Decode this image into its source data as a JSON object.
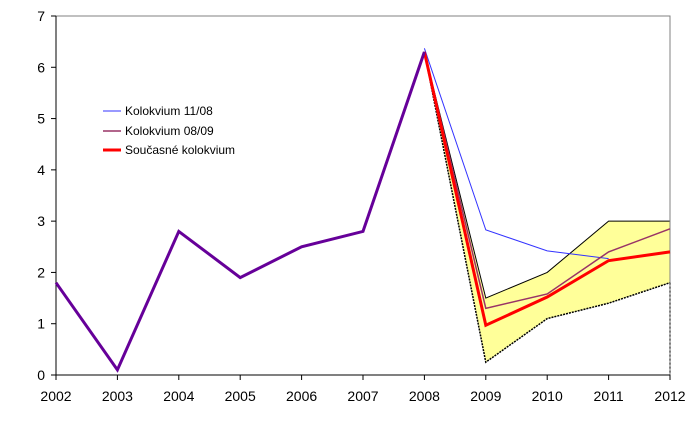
{
  "chart_data": {
    "type": "line",
    "title": "",
    "xlabel": "",
    "ylabel": "",
    "x": [
      "2002",
      "2003",
      "2004",
      "2005",
      "2006",
      "2007",
      "2008",
      "2009",
      "2010",
      "2011",
      "2012"
    ],
    "ylim": [
      0,
      7
    ],
    "yticks": [
      "0",
      "1",
      "2",
      "3",
      "4",
      "5",
      "6",
      "7"
    ],
    "grid": false,
    "legend_position": "left",
    "band": {
      "color": "#ffff99",
      "upper": [
        1.8,
        0.1,
        2.8,
        1.9,
        2.5,
        2.8,
        6.3,
        1.5,
        2.0,
        3.0,
        3.0
      ],
      "lower": [
        1.8,
        0.1,
        2.8,
        1.9,
        2.5,
        2.8,
        6.3,
        0.25,
        1.1,
        1.4,
        1.8
      ]
    },
    "series": [
      {
        "name": "Kolokvium 11/08",
        "color": "#3333ff",
        "width": 1,
        "values": [
          1.8,
          0.1,
          2.8,
          1.9,
          2.5,
          2.8,
          6.37,
          2.83,
          2.42,
          2.27,
          null
        ]
      },
      {
        "name": "Kolokvium 08/09",
        "color": "#993366",
        "width": 1.5,
        "values": [
          1.8,
          0.1,
          2.8,
          1.9,
          2.5,
          2.8,
          6.3,
          1.3,
          1.58,
          2.4,
          2.85
        ]
      },
      {
        "name": "Současné kolokvium",
        "color": "#ff0000",
        "width": 3,
        "values": [
          1.8,
          0.1,
          2.8,
          1.9,
          2.5,
          2.8,
          6.3,
          0.97,
          1.52,
          2.23,
          2.4
        ]
      }
    ],
    "history_color": "#660099"
  }
}
